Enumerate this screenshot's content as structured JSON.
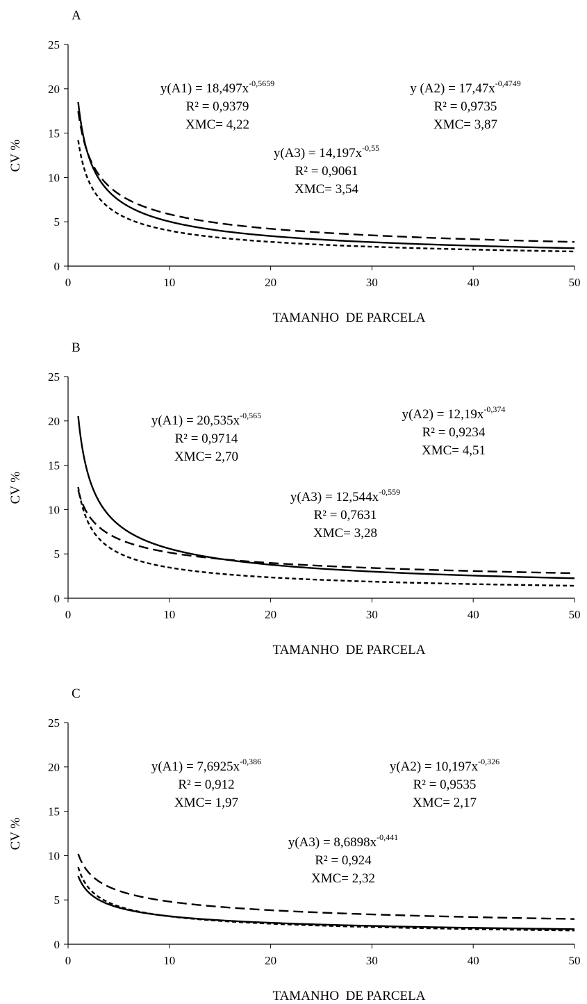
{
  "chart_data": [
    {
      "type": "line",
      "panel_label": "A",
      "xlabel": "TAMANHO  DE PARCELA",
      "ylabel": "CV %",
      "xlim": [
        0,
        50
      ],
      "ylim": [
        0,
        25
      ],
      "x_ticks": [
        0,
        10,
        20,
        30,
        40,
        50
      ],
      "y_ticks": [
        0,
        5,
        10,
        15,
        20,
        25
      ],
      "grid": false,
      "series": [
        {
          "key": "A1",
          "style": "solid",
          "a": 18.497,
          "b": -0.5659,
          "x_range": [
            1,
            50
          ],
          "equation": "y(A1) = 18,497x",
          "exponent": "-0,5659",
          "r2": "R² = 0,9379",
          "xmc": "XMC= 4,22"
        },
        {
          "key": "A2",
          "style": "long-dash",
          "a": 17.47,
          "b": -0.4749,
          "x_range": [
            1,
            50
          ],
          "equation": "y (A2) = 17,47x",
          "exponent": "-0,4749",
          "r2": "R² = 0,9735",
          "xmc": "XMC= 3,87"
        },
        {
          "key": "A3",
          "style": "short-dash",
          "a": 14.197,
          "b": -0.55,
          "x_range": [
            1,
            50
          ],
          "equation": "y(A3) = 14,197x",
          "exponent": "-0,55",
          "r2": "R² = 0,9061",
          "xmc": "XMC= 3,54"
        }
      ]
    },
    {
      "type": "line",
      "panel_label": "B",
      "xlabel": "TAMANHO  DE PARCELA",
      "ylabel": "CV %",
      "xlim": [
        0,
        50
      ],
      "ylim": [
        0,
        25
      ],
      "x_ticks": [
        0,
        10,
        20,
        30,
        40,
        50
      ],
      "y_ticks": [
        0,
        5,
        10,
        15,
        20,
        25
      ],
      "grid": false,
      "series": [
        {
          "key": "A1",
          "style": "solid",
          "a": 20.535,
          "b": -0.565,
          "x_range": [
            1,
            50
          ],
          "equation": "y(A1) = 20,535x",
          "exponent": "-0,565",
          "r2": "R² = 0,9714",
          "xmc": "XMC= 2,70"
        },
        {
          "key": "A2",
          "style": "long-dash",
          "a": 12.19,
          "b": -0.374,
          "x_range": [
            1,
            50
          ],
          "equation": "y(A2) = 12,19x",
          "exponent": "-0,374",
          "r2": "R² = 0,9234",
          "xmc": "XMC= 4,51"
        },
        {
          "key": "A3",
          "style": "short-dash",
          "a": 12.544,
          "b": -0.559,
          "x_range": [
            1,
            50
          ],
          "equation": "y(A3) = 12,544x",
          "exponent": "-0,559",
          "r2": "R² = 0,7631",
          "xmc": "XMC= 3,28"
        }
      ]
    },
    {
      "type": "line",
      "panel_label": "C",
      "xlabel": "TAMANHO  DE PARCELA",
      "ylabel": "CV %",
      "xlim": [
        0,
        50
      ],
      "ylim": [
        0,
        25
      ],
      "x_ticks": [
        0,
        10,
        20,
        30,
        40,
        50
      ],
      "y_ticks": [
        0,
        5,
        10,
        15,
        20,
        25
      ],
      "grid": false,
      "series": [
        {
          "key": "A1",
          "style": "solid",
          "a": 7.6925,
          "b": -0.386,
          "x_range": [
            1,
            50
          ],
          "equation": "y(A1) = 7,6925x",
          "exponent": "-0,386",
          "r2": "R² = 0,912",
          "xmc": "XMC= 1,97"
        },
        {
          "key": "A2",
          "style": "long-dash",
          "a": 10.197,
          "b": -0.326,
          "x_range": [
            1,
            50
          ],
          "equation": "y(A2) = 10,197x",
          "exponent": "-0,326",
          "r2": "R² = 0,9535",
          "xmc": "XMC= 2,17"
        },
        {
          "key": "A3",
          "style": "short-dash",
          "a": 8.6898,
          "b": -0.441,
          "x_range": [
            1,
            50
          ],
          "equation": "y(A3) = 8,6898x",
          "exponent": "-0,441",
          "r2": "R² = 0,924",
          "xmc": "XMC= 2,32"
        }
      ]
    }
  ]
}
